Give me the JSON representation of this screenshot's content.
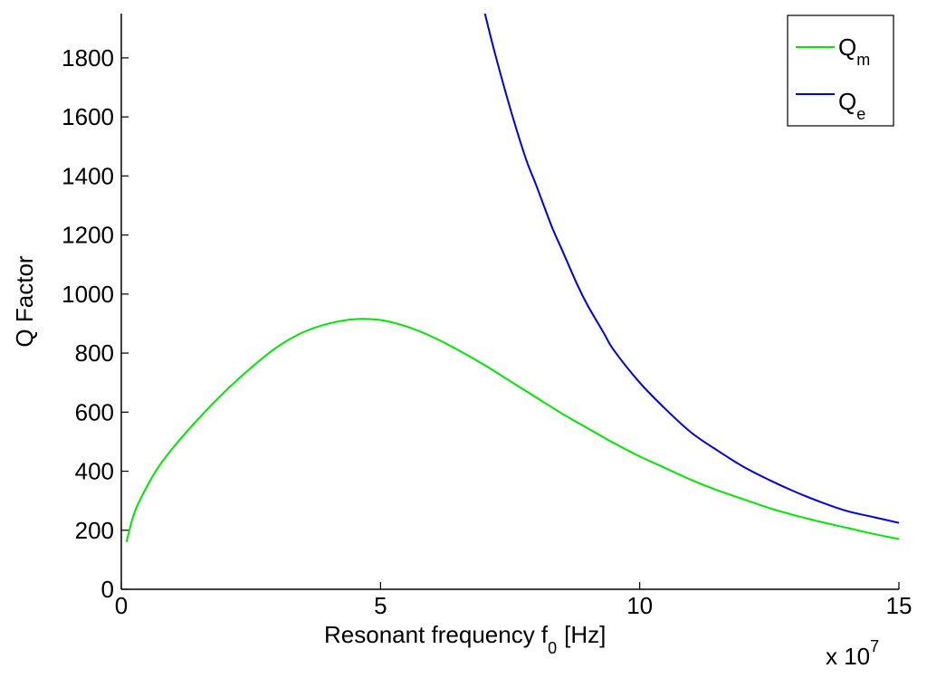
{
  "chart_data": {
    "type": "line",
    "title": "",
    "xlabel": "Resonant frequency f",
    "xlabel_subscript": "0",
    "xlabel_unit": "[Hz]",
    "ylabel": "Q Factor",
    "x_exponent_label": "x 10",
    "x_exponent_power": "7",
    "xlim": [
      0,
      15
    ],
    "ylim": [
      0,
      1950
    ],
    "x_ticks": [
      0,
      5,
      10,
      15
    ],
    "y_ticks": [
      0,
      200,
      400,
      600,
      800,
      1000,
      1200,
      1400,
      1600,
      1800
    ],
    "grid": false,
    "legend_position": "top-right",
    "series": [
      {
        "name": "Q",
        "name_subscript": "m",
        "color": "#00e600",
        "x": [
          0.1,
          0.2,
          0.3,
          0.5,
          0.7,
          1.0,
          1.5,
          2.0,
          2.5,
          3.0,
          3.5,
          4.0,
          4.5,
          5.0,
          5.5,
          6.0,
          6.5,
          7.0,
          7.5,
          8.0,
          8.5,
          9.0,
          9.5,
          10.0,
          10.5,
          11.0,
          11.5,
          12.0,
          12.5,
          13.0,
          13.5,
          14.0,
          14.5,
          15.0
        ],
        "y": [
          160,
          230,
          280,
          350,
          410,
          480,
          580,
          670,
          750,
          820,
          870,
          900,
          915,
          912,
          890,
          855,
          810,
          760,
          705,
          650,
          595,
          545,
          495,
          450,
          410,
          370,
          335,
          305,
          275,
          250,
          228,
          208,
          188,
          170
        ]
      },
      {
        "name": "Q",
        "name_subscript": "e",
        "color": "#0000e6",
        "x": [
          7.0,
          7.2,
          7.5,
          7.8,
          8.0,
          8.3,
          8.5,
          8.8,
          9.0,
          9.3,
          9.5,
          10.0,
          10.5,
          11.0,
          11.5,
          12.0,
          12.5,
          13.0,
          13.5,
          14.0,
          14.5,
          15.0
        ],
        "y": [
          1960,
          1820,
          1630,
          1460,
          1370,
          1230,
          1150,
          1030,
          960,
          870,
          810,
          700,
          610,
          530,
          470,
          415,
          370,
          330,
          295,
          265,
          245,
          225
        ]
      }
    ]
  }
}
